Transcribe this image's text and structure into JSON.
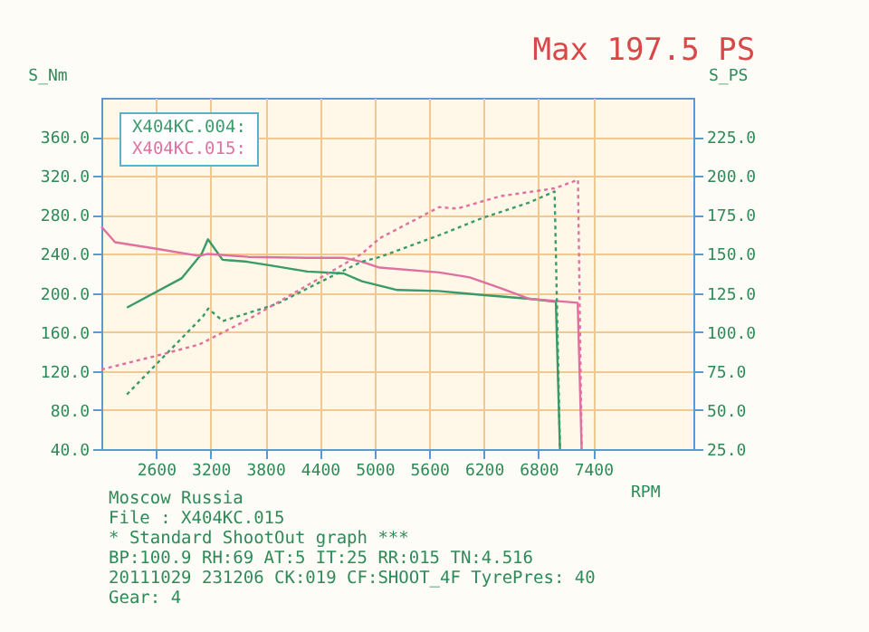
{
  "chart_data": {
    "type": "line",
    "title": "Max 197.5 PS",
    "xlabel": "RPM",
    "ylabel": "S_Nm",
    "y2label": "S_PS",
    "xlim": [
      2000,
      8500
    ],
    "xticks": [
      2600,
      3200,
      3800,
      4400,
      5000,
      5600,
      6200,
      6800,
      7400
    ],
    "ylim": [
      40,
      400
    ],
    "yticks": [
      {
        "value": 40,
        "label": "40.0"
      },
      {
        "value": 80,
        "label": "80.0"
      },
      {
        "value": 120,
        "label": "120.0"
      },
      {
        "value": 160,
        "label": "160.0"
      },
      {
        "value": 200,
        "label": "200.0"
      },
      {
        "value": 240,
        "label": "240.0"
      },
      {
        "value": 280,
        "label": "280.0"
      },
      {
        "value": 320,
        "label": "320.0"
      },
      {
        "value": 360,
        "label": "360.0"
      }
    ],
    "y2lim": [
      25,
      250
    ],
    "y2ticks": [
      {
        "value": 25,
        "label": "25.0"
      },
      {
        "value": 50,
        "label": "50.0"
      },
      {
        "value": 75,
        "label": "75.0"
      },
      {
        "value": 100,
        "label": "100.0"
      },
      {
        "value": 125,
        "label": "125.0"
      },
      {
        "value": 150,
        "label": "150.0"
      },
      {
        "value": 175,
        "label": "175.0"
      },
      {
        "value": 200,
        "label": "200.0"
      },
      {
        "value": 225,
        "label": "225.0"
      }
    ],
    "grid": true,
    "legend": "top left",
    "marker": "none",
    "series": [
      {
        "name": "X404KC.004:",
        "color": "#3a9a6a",
        "line_style": "solid",
        "x": [
          2280,
          2880,
          3100,
          3170,
          3330,
          3600,
          3870,
          4260,
          4660,
          4860,
          5250,
          5700,
          6180,
          6700,
          6990,
          7035
        ],
        "values": [
          185,
          215,
          240,
          255,
          234,
          232,
          228,
          222,
          220,
          212,
          203,
          202,
          198,
          194,
          191,
          40
        ]
      },
      {
        "name": "X404KC.015:",
        "color": "#e070a0",
        "line_style": "solid",
        "x": [
          2000,
          2150,
          2620,
          3075,
          3170,
          3610,
          4260,
          4660,
          4860,
          5055,
          5710,
          6045,
          6380,
          6700,
          7230,
          7273
        ],
        "values": [
          268,
          252,
          245,
          238,
          240,
          237,
          236,
          236,
          232,
          226,
          221,
          216,
          205,
          194,
          190,
          40
        ]
      },
      {
        "color": "#3a9a6a",
        "line_style": "dotted",
        "axis": "y2",
        "x": [
          2280,
          3115,
          3174,
          3333,
          3927,
          4402,
          4857,
          5055,
          5709,
          6184,
          6699,
          6976,
          7035
        ],
        "values": [
          60,
          110,
          115,
          107,
          118,
          132,
          145,
          148,
          162,
          173,
          183,
          190,
          25
        ]
      },
      {
        "color": "#e070a0",
        "line_style": "dotted",
        "axis": "y2",
        "x": [
          2000,
          2620,
          3075,
          3610,
          4263,
          4857,
          5055,
          5709,
          5907,
          6382,
          6976,
          7233,
          7273
        ],
        "values": [
          76,
          85,
          92,
          108,
          130,
          150,
          160,
          180,
          179,
          187,
          192,
          197.5,
          25
        ]
      }
    ],
    "annotations": [
      "Moscow Russia",
      "File : X404KC.015",
      "* Standard ShootOut graph ***",
      "BP:100.9 RH:69 AT:5 IT:25 RR:015 TN:4.516",
      "20111029 231206 CK:019 CF:SHOOT_4F TyrePres: 40",
      "Gear: 4"
    ]
  }
}
